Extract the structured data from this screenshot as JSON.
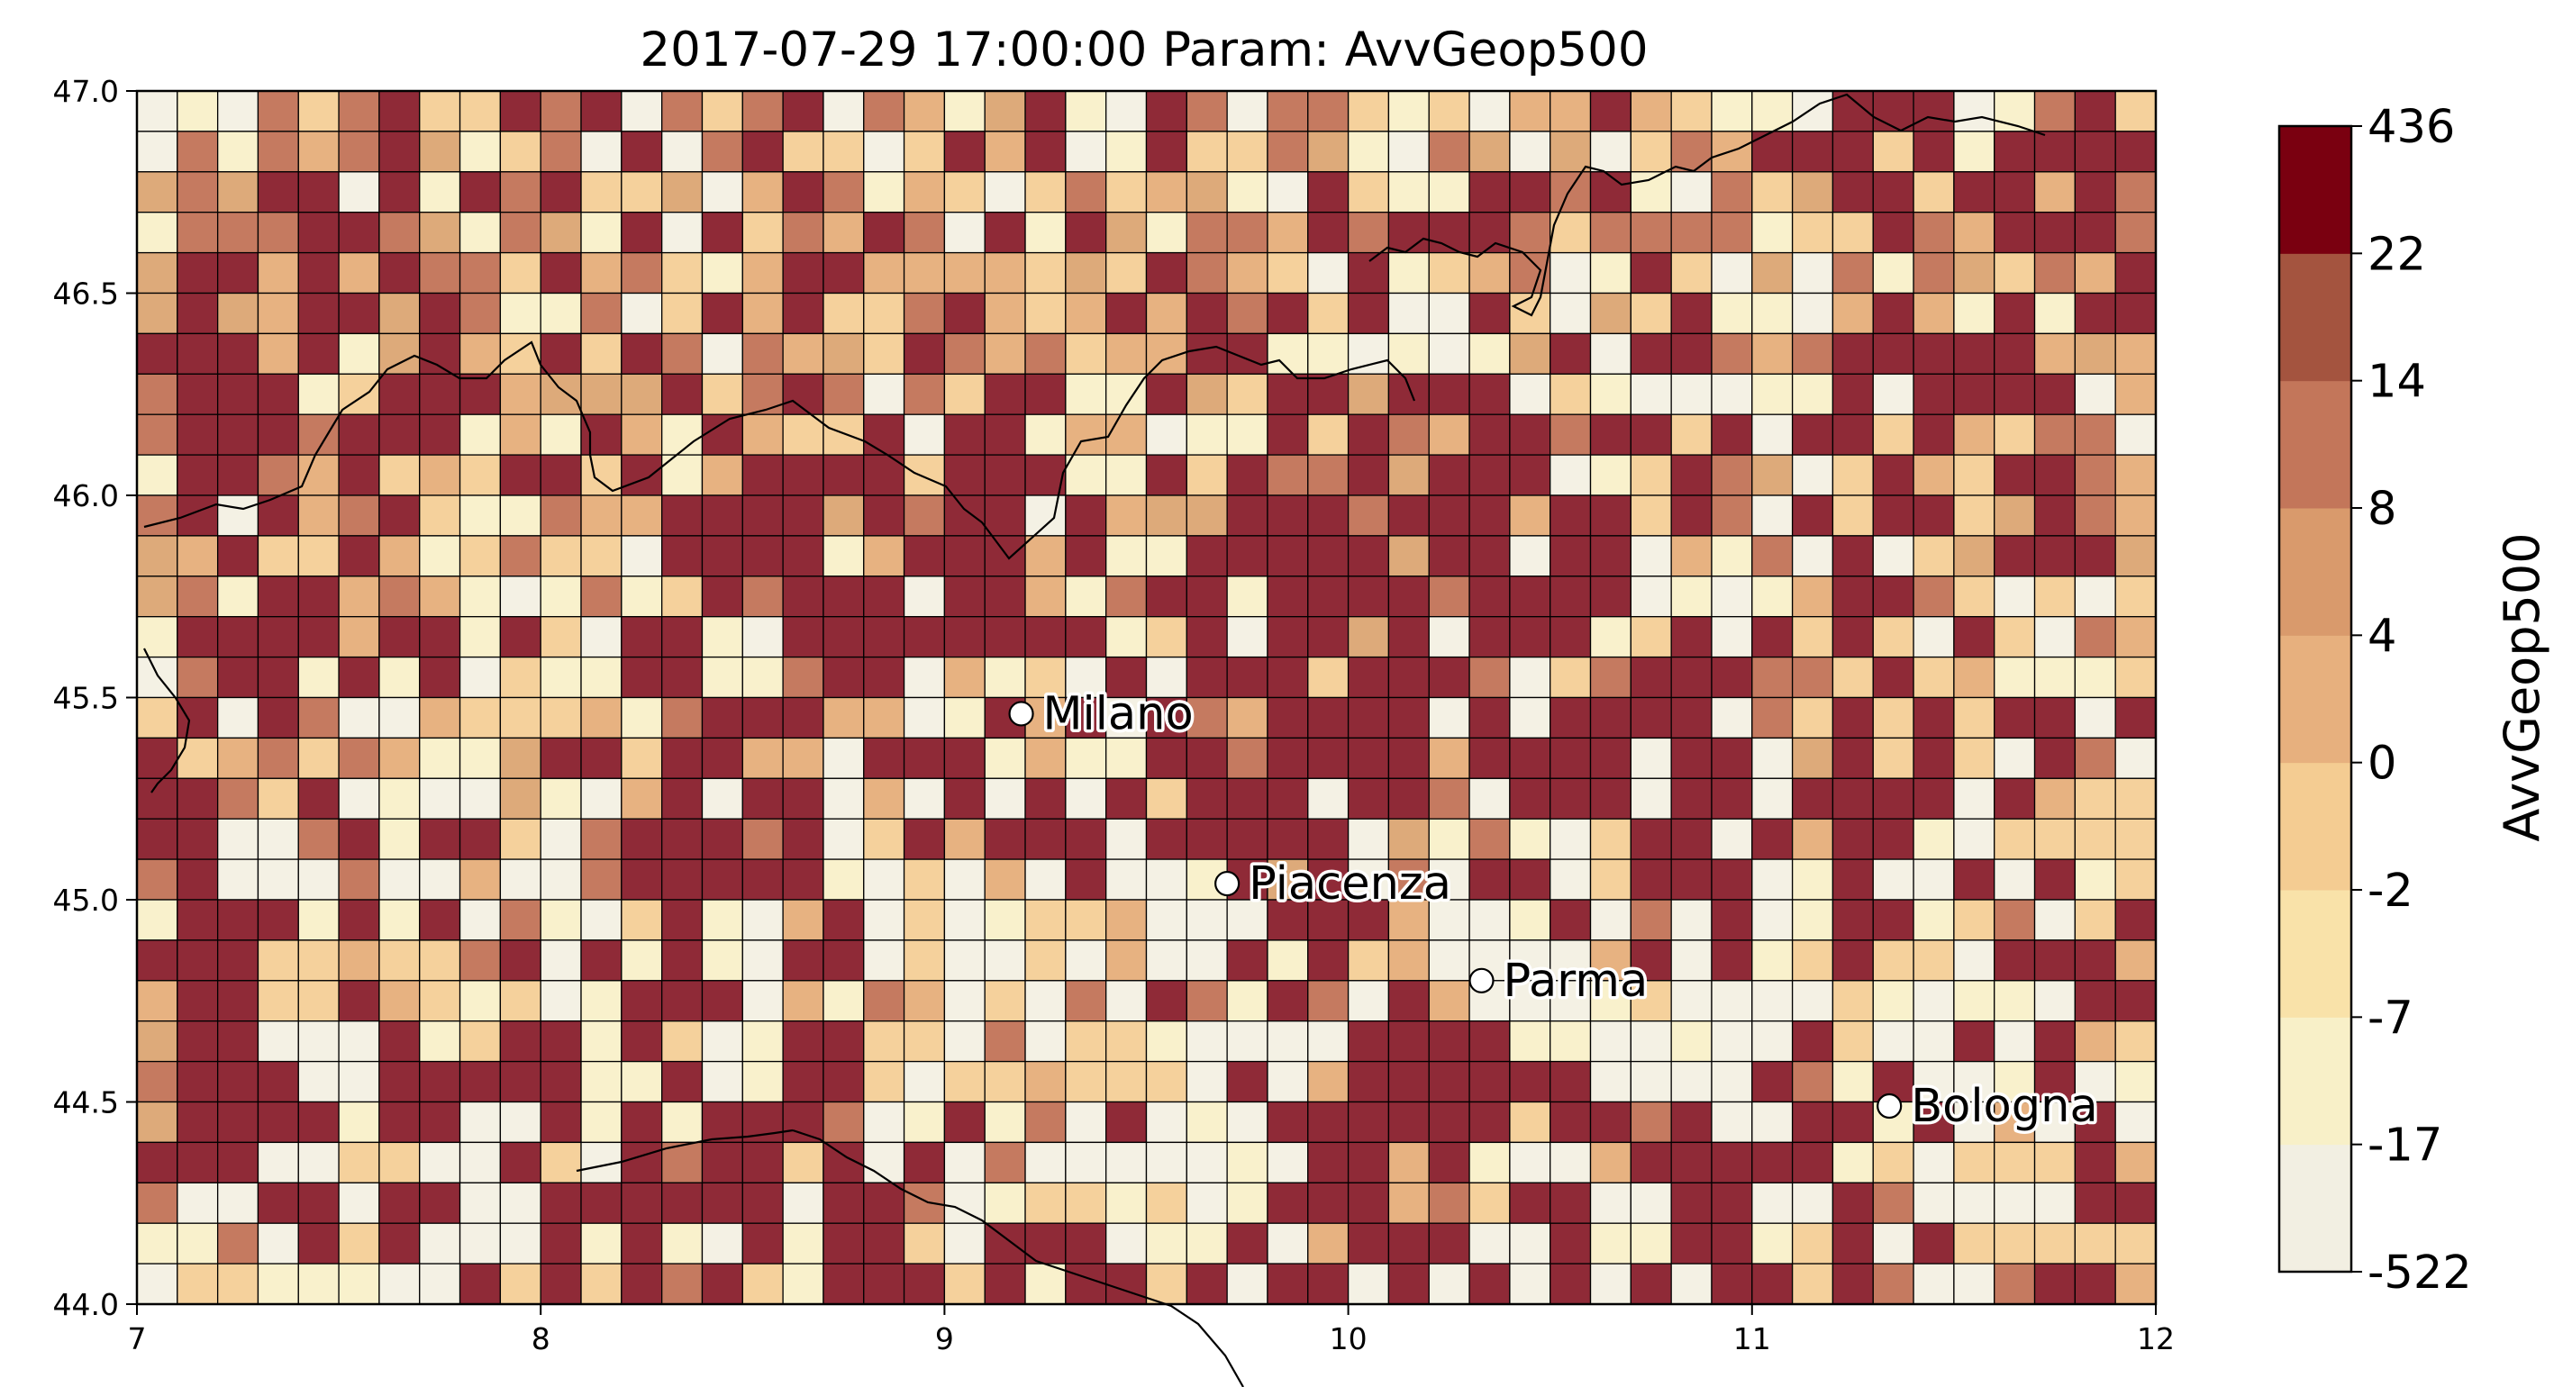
{
  "chart_data": {
    "type": "heatmap",
    "title": "2017-07-29 17:00:00 Param: AvvGeop500",
    "xlabel": "",
    "ylabel": "",
    "xlim": [
      7,
      12
    ],
    "ylim": [
      44.0,
      47.0
    ],
    "x_ticks": [
      "7",
      "8",
      "9",
      "10",
      "11",
      "12"
    ],
    "y_ticks": [
      "47.0",
      "46.5",
      "46.0",
      "45.5",
      "45.0",
      "44.5",
      "44.0"
    ],
    "grid_shape": {
      "cols": 50,
      "rows": 30,
      "cell_deg": 0.1
    },
    "colorbar": {
      "label": "AvvGeop500",
      "ticks": [
        "-522",
        "-17",
        "-7",
        "-2",
        "0",
        "4",
        "8",
        "14",
        "22",
        "436"
      ],
      "colors": [
        "#f2efe2",
        "#f8f0c8",
        "#f9e2a9",
        "#f4cc92",
        "#e7b07e",
        "#d99a6c",
        "#c3765a",
        "#a4543f",
        "#7a0010"
      ]
    },
    "cell_colors": [
      "#f4f1e4",
      "#f9f1cc",
      "#f5d19c",
      "#e7b281",
      "#ddaa7a",
      "#c57a60",
      "#8f2a37"
    ],
    "cell_class_rows": [
      "01052562265605256053146106505521203363211066601562",
      "05153564125060562202636016225410540402536662616666",
      "45466061656224036513202523410621166561052466266365",
      "15556654154160625365061641553656665255551226536665",
      "46636365526352136633332426532061235016204051542536",
      "46436646511502636225632363656260062042611036316166",
      "66636146326265053426535233661101014606653566666343",
      "56661266634446256505266116426646660210001160666603",
      "56665666131631632260661330116265366566260662632550",
      "16653623266261366662666116265564666012654026326653",
      "56063562115336666465660634466656663662650626624653",
      "43622631252206666136663611666664660660315060246664",
      "45166353101512656660663156616666566660101366520202",
      "16666366162066106666666612606646066612606262062053",
      "05661616021166115660312060666266650256665526231112",
      "26065003222315666330163606536666060666605262626606",
      "62352531146626633066613116656666366660660462620650",
      "66526010041036066030606062666066506660660666606322",
      "66005616620566656026366606666604151026606366102222",
      "56000500300566666102030600164605066026660160060612",
      "16661616051026103602012230006663001605060166125026",
      "66622322560616106602002030061623000036061262206663",
      "36622632120166603153020506516506300012000021011066",
      "46600061266162016622050221000066661100100620060632",
      "56660066666116016620223222060366666600006516001601",
      "46666166006161666501615060106666662665600661603060",
      "66600220062065662606050000010663610036666612022263",
      "50066066006666660665012212016663526600660065000066",
      "11506260006161061662066601160366600611661260622222",
      "02211100626265621666261662606606060606066265005663"
    ],
    "cities": [
      {
        "name": "Milano",
        "lon": 9.19,
        "lat": 45.46
      },
      {
        "name": "Piacenza",
        "lon": 9.7,
        "lat": 45.04
      },
      {
        "name": "Parma",
        "lon": 10.33,
        "lat": 44.8
      },
      {
        "name": "Bologna",
        "lon": 11.34,
        "lat": 44.49
      }
    ]
  }
}
